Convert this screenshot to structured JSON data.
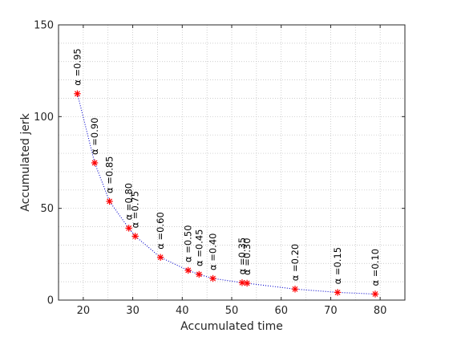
{
  "chart_data": {
    "type": "scatter",
    "title": "",
    "xlabel": "Accumulated time",
    "ylabel": "Accumulated jerk",
    "xlim": [
      15,
      85
    ],
    "ylim": [
      0,
      150
    ],
    "x_ticks": [
      20,
      30,
      40,
      50,
      60,
      70,
      80
    ],
    "y_ticks": [
      0,
      50,
      100,
      150
    ],
    "grid": "minor-dotted",
    "marker": "*",
    "marker_color": "#ff0000",
    "line_color": "#0000cc",
    "line_style": "dotted",
    "points": [
      {
        "x": 18.8,
        "y": 112.5,
        "label": "α =0.95"
      },
      {
        "x": 22.3,
        "y": 74.8,
        "label": "α =0.90"
      },
      {
        "x": 25.3,
        "y": 53.8,
        "label": "α =0.85"
      },
      {
        "x": 29.2,
        "y": 39.2,
        "label": "α =0.80"
      },
      {
        "x": 30.5,
        "y": 34.8,
        "label": "α =0.75"
      },
      {
        "x": 35.6,
        "y": 23.3,
        "label": "α =0.60"
      },
      {
        "x": 41.2,
        "y": 16.2,
        "label": "α =0.50"
      },
      {
        "x": 43.4,
        "y": 14.0,
        "label": "α =0.45"
      },
      {
        "x": 46.2,
        "y": 11.8,
        "label": "α =0.40"
      },
      {
        "x": 52.1,
        "y": 9.5,
        "label": "α =0.35"
      },
      {
        "x": 53.1,
        "y": 9.2,
        "label": "α =0.30"
      },
      {
        "x": 62.8,
        "y": 6.0,
        "label": "α =0.20"
      },
      {
        "x": 71.4,
        "y": 4.2,
        "label": "α =0.15"
      },
      {
        "x": 79.0,
        "y": 3.3,
        "label": "α =0.10"
      }
    ]
  }
}
